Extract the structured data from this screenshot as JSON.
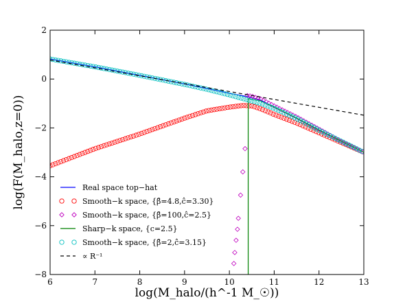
{
  "chart_data": {
    "type": "line",
    "title": "",
    "xlabel": "log(M_halo/(h^-1 M_☉))",
    "ylabel": "log(F(M_halo,z=0))",
    "xlim": [
      6,
      13
    ],
    "ylim": [
      -8,
      2
    ],
    "xticks": [
      "6",
      "7",
      "8",
      "9",
      "10",
      "11",
      "12",
      "13"
    ],
    "yticks": [
      "−8",
      "−6",
      "−4",
      "−2",
      "0",
      "2"
    ],
    "grid": false,
    "legend_position": "lower-left",
    "series": [
      {
        "name": "Real space top−hat",
        "style": "line",
        "color": "#0000ff",
        "x": [
          6,
          7,
          8,
          9,
          10,
          10.4,
          10.7,
          11,
          11.5,
          12,
          12.5,
          13
        ],
        "y": [
          0.82,
          0.5,
          0.15,
          -0.2,
          -0.58,
          -0.72,
          -0.86,
          -1.15,
          -1.6,
          -2.08,
          -2.55,
          -3.0
        ]
      },
      {
        "name": "Smooth−k space, {β̂=4.8,ĉ=3.30}",
        "style": "circle",
        "color": "#ff0000",
        "x": [
          6,
          7,
          8,
          9,
          9.5,
          10,
          10.3,
          10.5,
          10.7,
          11,
          11.5,
          12,
          12.5,
          13
        ],
        "y": [
          -3.55,
          -2.85,
          -2.25,
          -1.6,
          -1.3,
          -1.15,
          -1.08,
          -1.1,
          -1.22,
          -1.45,
          -1.8,
          -2.2,
          -2.6,
          -3.0
        ]
      },
      {
        "name": "Smooth−k space, {β̂=100,ĉ=2.5}",
        "style": "diamond",
        "color": "#bf00bf",
        "x": [
          10.1,
          10.12,
          10.15,
          10.18,
          10.2,
          10.25,
          10.3,
          10.35,
          10.4,
          10.5,
          10.7,
          11,
          11.5,
          12,
          12.5,
          13
        ],
        "y": [
          -7.55,
          -7.1,
          -6.6,
          -6.15,
          -5.7,
          -4.75,
          -3.8,
          -2.85,
          -0.68,
          -0.7,
          -0.82,
          -1.1,
          -1.55,
          -2.05,
          -2.55,
          -3.0
        ]
      },
      {
        "name": "Sharp−k space, {c=2.5}",
        "style": "line",
        "color": "#008000",
        "x": [
          10.42,
          10.42,
          10.7,
          11,
          11.5,
          12,
          12.5,
          13
        ],
        "y": [
          -8,
          -0.8,
          -0.9,
          -1.15,
          -1.6,
          -2.08,
          -2.55,
          -3.0
        ]
      },
      {
        "name": "Smooth−k space, {β̂=2,ĉ=3.15}",
        "style": "circle",
        "color": "#00bfbf",
        "x": [
          6,
          7,
          8,
          9,
          9.5,
          10,
          10.4,
          10.7,
          11,
          11.5,
          12,
          12.5,
          13
        ],
        "y": [
          0.82,
          0.5,
          0.15,
          -0.22,
          -0.42,
          -0.65,
          -0.85,
          -1.0,
          -1.2,
          -1.62,
          -2.1,
          -2.55,
          -3.0
        ]
      },
      {
        "name": "∝ R⁻¹",
        "style": "dashed",
        "color": "#000000",
        "x": [
          6,
          13
        ],
        "y": [
          0.78,
          -1.48
        ]
      }
    ]
  }
}
